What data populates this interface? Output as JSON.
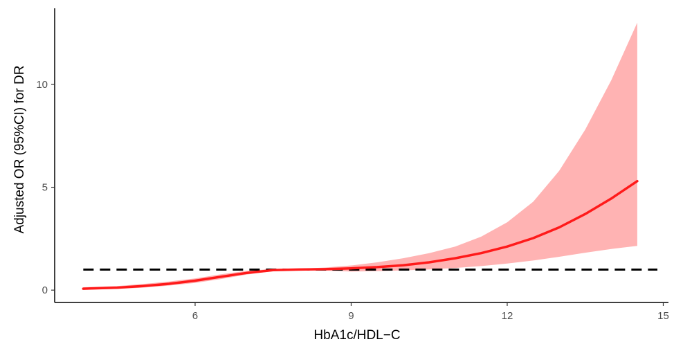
{
  "chart_data": {
    "type": "line",
    "title": "",
    "xlabel": "HbA1c/HDL−C",
    "ylabel": "Adjusted OR (95%CI) for DR",
    "xlim": [
      3.3,
      15.1
    ],
    "ylim": [
      -0.6,
      13.7
    ],
    "x_ticks": [
      6,
      9,
      12,
      15
    ],
    "x_tick_labels": [
      "6",
      "9",
      "12",
      "15"
    ],
    "y_ticks": [
      0,
      5,
      10
    ],
    "y_tick_labels": [
      "0",
      "5",
      "10"
    ],
    "grid": false,
    "legend": "none",
    "reference_line": {
      "y": 1,
      "style": "dashed",
      "color": "#000000"
    },
    "series": [
      {
        "x": [
          3.85,
          4.5,
          5.0,
          5.5,
          6.0,
          6.5,
          7.0,
          7.5,
          8.0,
          8.5,
          9.0,
          9.5,
          10.0,
          10.5,
          11.0,
          11.5,
          12.0,
          12.5,
          13.0,
          13.5,
          14.0,
          14.5
        ],
        "y": [
          0.07,
          0.12,
          0.2,
          0.31,
          0.46,
          0.65,
          0.84,
          0.97,
          1.0,
          1.02,
          1.06,
          1.12,
          1.21,
          1.35,
          1.55,
          1.8,
          2.12,
          2.53,
          3.05,
          3.7,
          4.45,
          5.3
        ],
        "lower": [
          0.02,
          0.06,
          0.12,
          0.22,
          0.35,
          0.54,
          0.76,
          0.92,
          0.97,
          0.95,
          0.9,
          0.92,
          0.96,
          1.01,
          1.08,
          1.17,
          1.29,
          1.44,
          1.62,
          1.82,
          2.0,
          2.15
        ],
        "upper": [
          0.14,
          0.2,
          0.3,
          0.42,
          0.57,
          0.77,
          0.94,
          1.03,
          1.04,
          1.1,
          1.2,
          1.35,
          1.55,
          1.8,
          2.12,
          2.6,
          3.3,
          4.3,
          5.8,
          7.8,
          10.2,
          13.0
        ],
        "line_color": "#ff1a1a",
        "ribbon_color": "#ffb3b3"
      }
    ]
  }
}
